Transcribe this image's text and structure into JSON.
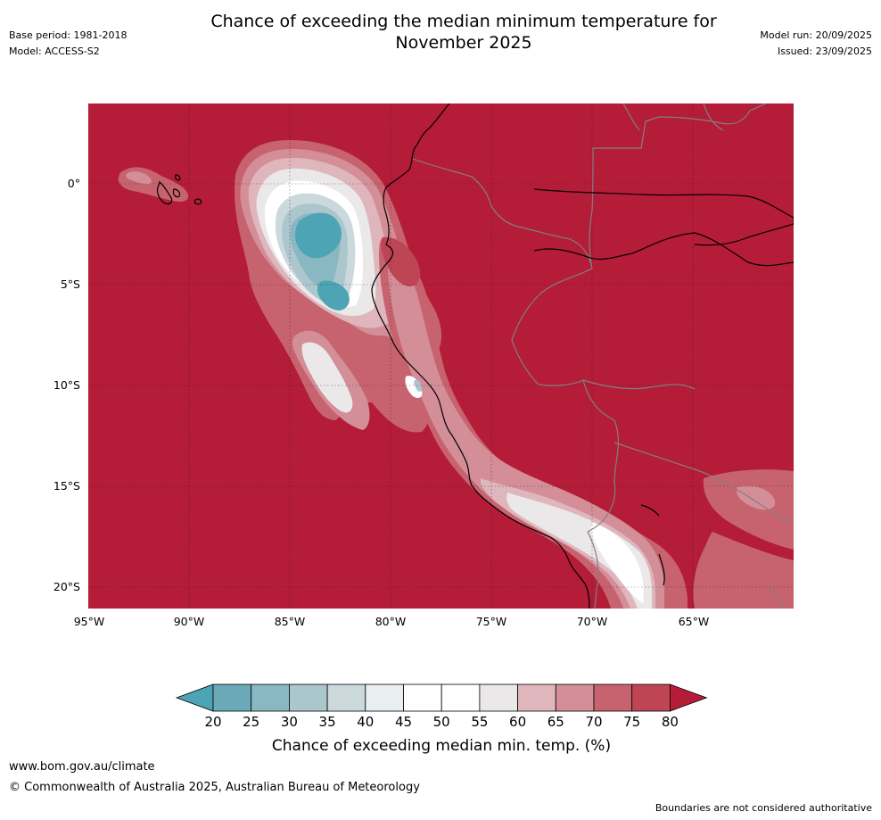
{
  "header": {
    "title_line1": "Chance of exceeding the median minimum temperature for",
    "title_line2": "November 2025",
    "base_period": "Base period: 1981-2018",
    "model": "Model: ACCESS-S2",
    "model_run": "Model run: 20/09/2025",
    "issued": "Issued: 23/09/2025"
  },
  "map": {
    "region": "Eastern Pacific and north-western South America",
    "lat_labels": [
      "0°",
      "5°S",
      "10°S",
      "15°S",
      "20°S"
    ],
    "lon_labels": [
      "95°W",
      "90°W",
      "85°W",
      "80°W",
      "75°W",
      "70°W",
      "65°W"
    ],
    "background_color": "#b41c38",
    "coastline_color": "#000000",
    "border_color": "#808080"
  },
  "colorbar": {
    "ticks": [
      "20",
      "25",
      "30",
      "35",
      "40",
      "45",
      "50",
      "55",
      "60",
      "65",
      "70",
      "75",
      "80"
    ],
    "colors": [
      "#4ca4b4",
      "#6aaab8",
      "#8ab8c2",
      "#abc6cc",
      "#cbd8dc",
      "#e9eef1",
      "#ffffff",
      "#ffffff",
      "#ebe8ea",
      "#deb6bc",
      "#d38e98",
      "#c7636f",
      "#be4553",
      "#b41c38"
    ],
    "label": "Chance of exceeding median min. temp. (%)"
  },
  "footer": {
    "website": "www.bom.gov.au/climate",
    "copyright": "© Commonwealth of Australia 2025, Australian Bureau of Meteorology",
    "disclaimer": "Boundaries are not considered authoritative"
  }
}
